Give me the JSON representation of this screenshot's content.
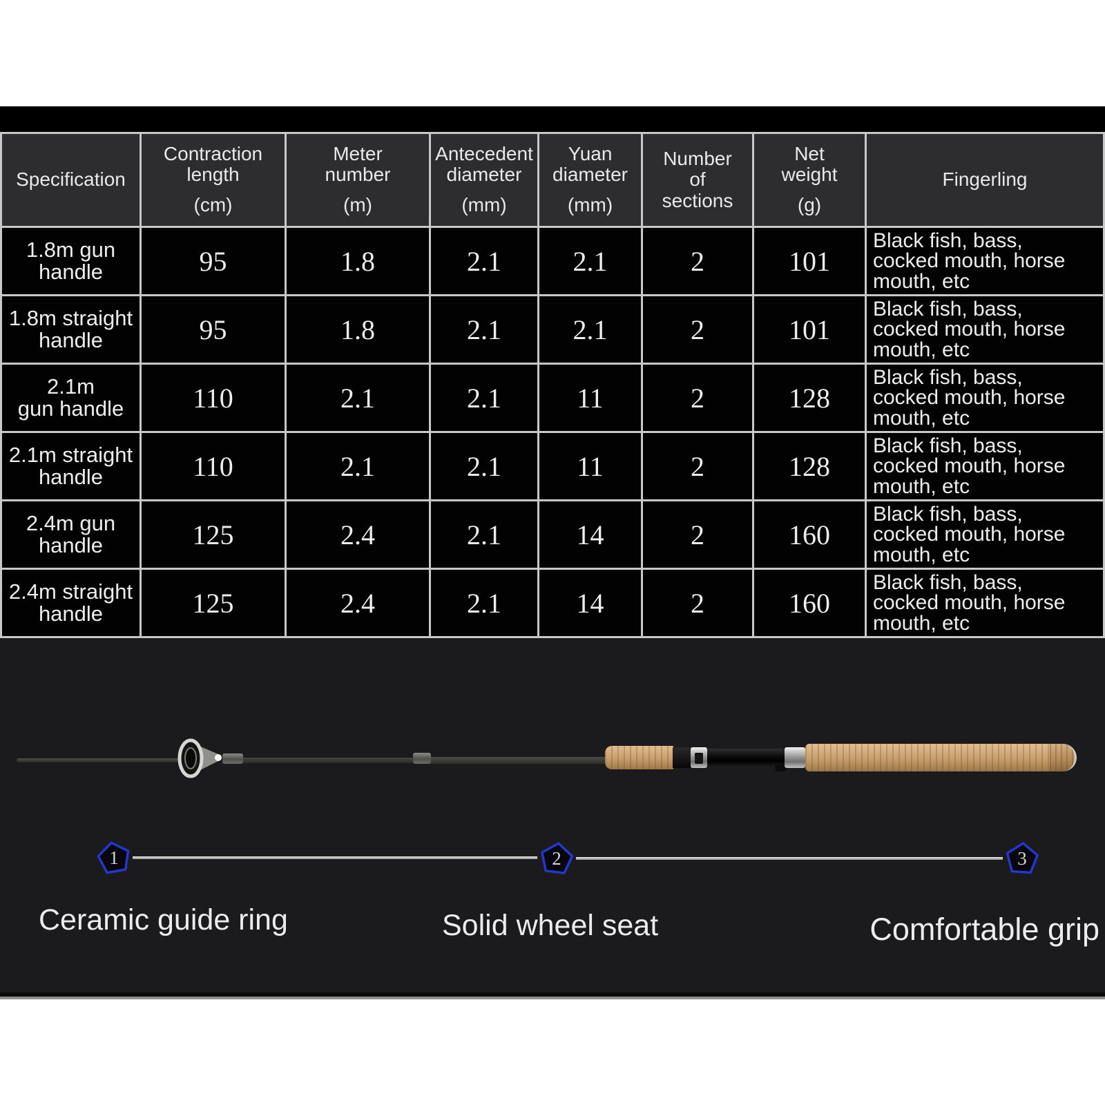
{
  "colors": {
    "marker_blue": "#2336cf",
    "cork_tan": "#c79e6b",
    "table_line": "#c8c8c8",
    "header_bg": "#2d2d2f",
    "cell_bg": "#020202",
    "section_bg": "#1b1b1d"
  },
  "table": {
    "columns": [
      {
        "label": "Specification",
        "unit": ""
      },
      {
        "label": "Contraction\nlength",
        "unit": "(cm)"
      },
      {
        "label": "Meter\nnumber",
        "unit": "(m)"
      },
      {
        "label": "Antecedent\ndiameter",
        "unit": "(mm)"
      },
      {
        "label": "Yuan\ndiameter",
        "unit": "(mm)"
      },
      {
        "label": "Number\nof\nsections",
        "unit": ""
      },
      {
        "label": "Net\nweight",
        "unit": "(g)"
      },
      {
        "label": "Fingerling",
        "unit": ""
      }
    ],
    "rows": [
      {
        "spec": "1.8m gun\nhandle",
        "contraction": "95",
        "meter": "1.8",
        "antecedent": "2.1",
        "yuan": "2.1",
        "sections": "2",
        "weight": "101",
        "fingerling": "Black fish, bass,\ncocked mouth, horse\nmouth, etc"
      },
      {
        "spec": "1.8m straight\nhandle",
        "contraction": "95",
        "meter": "1.8",
        "antecedent": "2.1",
        "yuan": "2.1",
        "sections": "2",
        "weight": "101",
        "fingerling": "Black fish, bass,\ncocked mouth, horse\nmouth, etc"
      },
      {
        "spec": "2.1m\ngun handle",
        "contraction": "110",
        "meter": "2.1",
        "antecedent": "2.1",
        "yuan": "11",
        "sections": "2",
        "weight": "128",
        "fingerling": "Black fish, bass,\ncocked mouth, horse\nmouth, etc"
      },
      {
        "spec": "2.1m straight\nhandle",
        "contraction": "110",
        "meter": "2.1",
        "antecedent": "2.1",
        "yuan": "11",
        "sections": "2",
        "weight": "128",
        "fingerling": "Black fish, bass,\ncocked mouth, horse\nmouth, etc"
      },
      {
        "spec": "2.4m gun\nhandle",
        "contraction": "125",
        "meter": "2.4",
        "antecedent": "2.1",
        "yuan": "14",
        "sections": "2",
        "weight": "160",
        "fingerling": "Black fish, bass,\ncocked mouth, horse\nmouth, etc"
      },
      {
        "spec": "2.4m straight\nhandle",
        "contraction": "125",
        "meter": "2.4",
        "antecedent": "2.1",
        "yuan": "14",
        "sections": "2",
        "weight": "160",
        "fingerling": "Black fish, bass,\ncocked mouth, horse\nmouth, etc"
      }
    ]
  },
  "callouts": [
    {
      "num": "1",
      "label": "Ceramic guide ring"
    },
    {
      "num": "2",
      "label": "Solid wheel seat"
    },
    {
      "num": "3",
      "label": "Comfortable grip"
    }
  ]
}
